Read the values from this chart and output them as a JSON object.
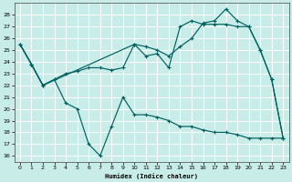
{
  "xlabel": "Humidex (Indice chaleur)",
  "xlim": [
    -0.5,
    23.5
  ],
  "ylim": [
    15.5,
    29
  ],
  "yticks": [
    16,
    17,
    18,
    19,
    20,
    21,
    22,
    23,
    24,
    25,
    26,
    27,
    28
  ],
  "xticks": [
    0,
    1,
    2,
    3,
    4,
    5,
    6,
    7,
    8,
    9,
    10,
    11,
    12,
    13,
    14,
    15,
    16,
    17,
    18,
    19,
    20,
    21,
    22,
    23
  ],
  "bg_color": "#c8ece8",
  "grid_color": "#ffffff",
  "line_color": "#006060",
  "line1_x": [
    0,
    1,
    2,
    3,
    4,
    5,
    6,
    7,
    8,
    9,
    10,
    11,
    12,
    13,
    14,
    15,
    16,
    17,
    18,
    19,
    20,
    21,
    22,
    23
  ],
  "line1_y": [
    25.5,
    23.8,
    22.0,
    22.5,
    20.5,
    20.0,
    17.0,
    16.0,
    18.5,
    21.0,
    19.5,
    19.5,
    19.3,
    19.0,
    18.5,
    18.5,
    18.2,
    18.0,
    18.0,
    17.8,
    17.5,
    17.5,
    17.5,
    17.5
  ],
  "line2_x": [
    0,
    1,
    2,
    3,
    4,
    5,
    6,
    7,
    8,
    9,
    10,
    11,
    12,
    13,
    14,
    15,
    16,
    17,
    18,
    19,
    20,
    21,
    22,
    23
  ],
  "line2_y": [
    25.5,
    23.8,
    22.0,
    22.5,
    23.0,
    23.2,
    23.5,
    23.5,
    23.3,
    23.5,
    25.5,
    24.5,
    24.7,
    23.5,
    27.0,
    27.5,
    27.2,
    27.2,
    27.2,
    27.0,
    27.0,
    25.0,
    22.5,
    17.5
  ],
  "line3_x": [
    0,
    1,
    2,
    10,
    11,
    12,
    13,
    14,
    15,
    16,
    17,
    18,
    19,
    20,
    21,
    22,
    23
  ],
  "line3_y": [
    25.5,
    23.8,
    22.0,
    25.5,
    25.3,
    25.0,
    24.5,
    25.3,
    26.0,
    27.3,
    27.5,
    28.5,
    27.5,
    27.0,
    25.0,
    22.5,
    17.5
  ]
}
